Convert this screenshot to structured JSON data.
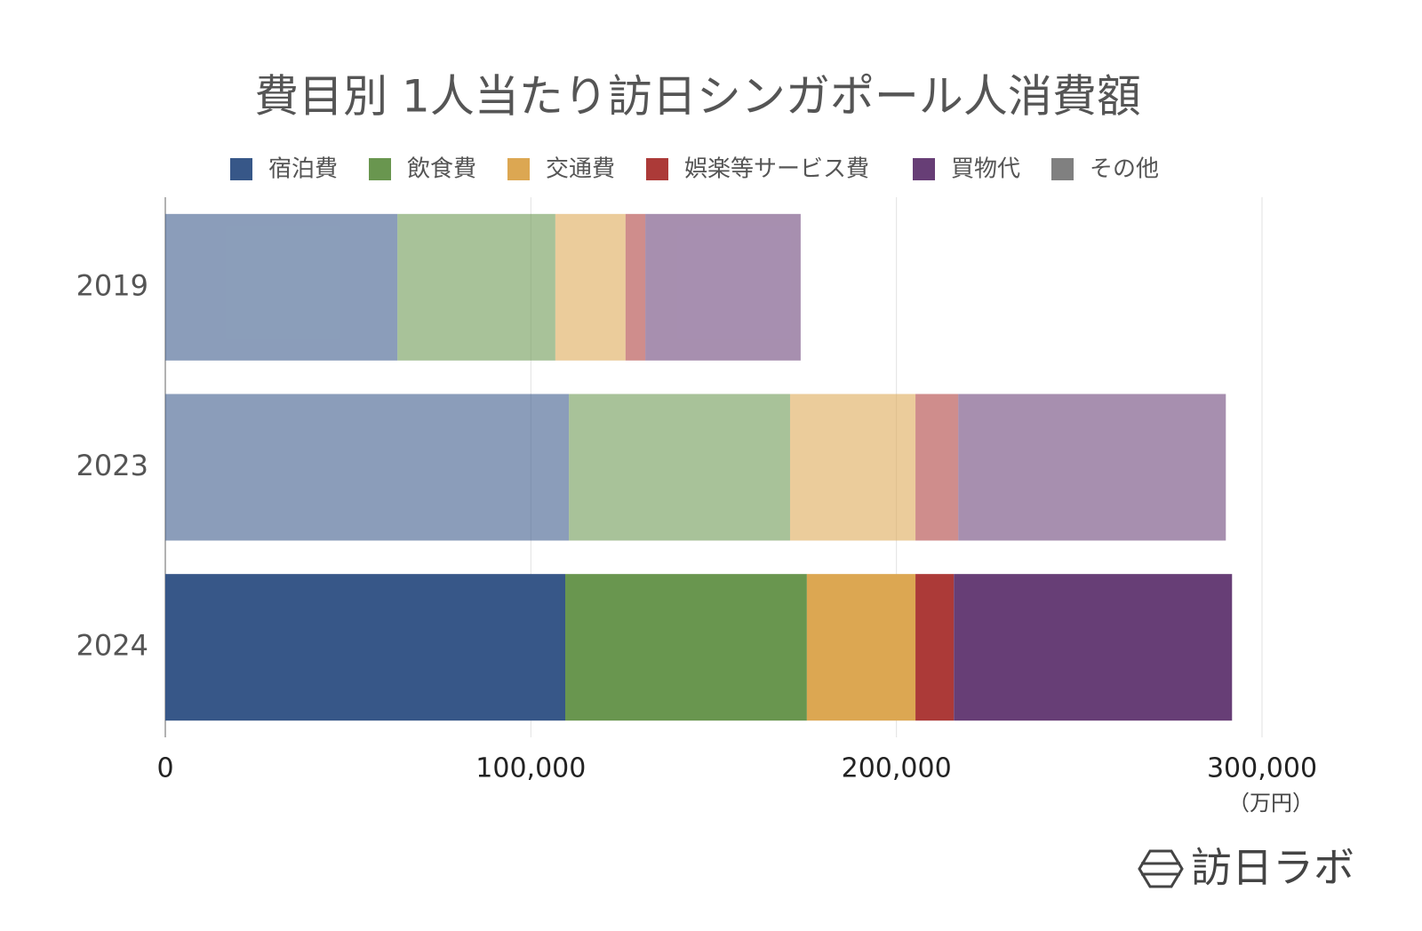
{
  "chart_data": {
    "type": "stacked-bar-horizontal",
    "title": "費目別 1人当たり訪日シンガポール人消費額",
    "categories": [
      "2019",
      "2023",
      "2024"
    ],
    "series": [
      {
        "name": "宿泊費",
        "color": "#375788",
        "values": [
          63500,
          110400,
          109400
        ]
      },
      {
        "name": "飲食費",
        "color": "#69964f",
        "values": [
          43200,
          60500,
          66100
        ]
      },
      {
        "name": "交通費",
        "color": "#dca752",
        "values": [
          19200,
          34300,
          29700
        ]
      },
      {
        "name": "娯楽等サービス費",
        "color": "#ac3a38",
        "values": [
          5400,
          11700,
          10500
        ]
      },
      {
        "name": "買物代",
        "color": "#673e76",
        "values": [
          42500,
          73200,
          76100
        ]
      },
      {
        "name": "その他",
        "color": "#808080",
        "values": [
          0,
          0,
          0
        ]
      }
    ],
    "xlim": [
      0,
      300000
    ],
    "xticks": [
      0,
      {
        "value": 100000,
        "label": "100,000"
      },
      {
        "value": 200000,
        "label": "200,000"
      },
      {
        "value": 300000,
        "label": "300,000"
      }
    ],
    "x_unit_label": "（万円）",
    "grid": true,
    "brand": "訪日ラボ"
  }
}
